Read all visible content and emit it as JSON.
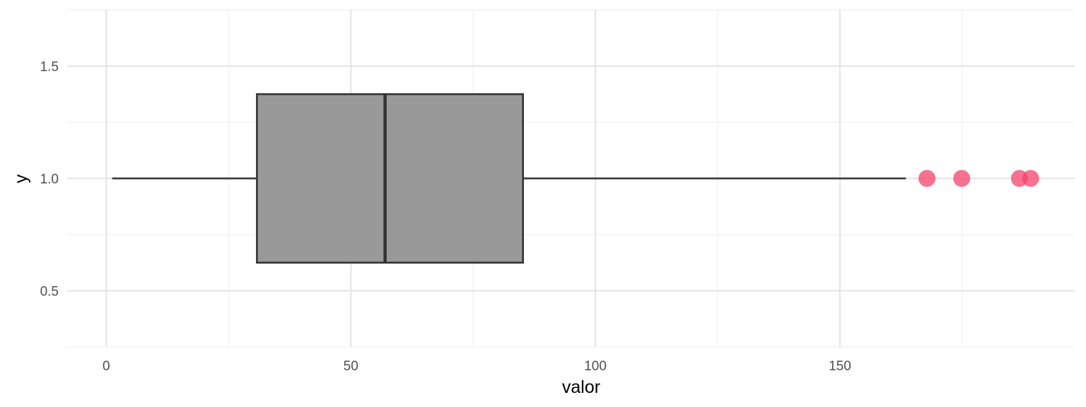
{
  "chart_data": {
    "type": "boxplot",
    "title": "",
    "xlabel": "valor",
    "ylabel": "y",
    "xlim": [
      -8,
      198
    ],
    "ylim": [
      0.25,
      1.75
    ],
    "x_ticks": [
      0,
      50,
      100,
      150
    ],
    "x_tick_labels": [
      "0",
      "50",
      "100",
      "150"
    ],
    "y_ticks": [
      0.5,
      1.0,
      1.5
    ],
    "y_tick_labels": [
      "0.5",
      "1.0",
      "1.5"
    ],
    "x_minor_ticks": [
      25,
      75,
      125,
      175
    ],
    "y_minor_ticks": [
      0.25,
      0.75,
      1.25,
      1.75
    ],
    "grid": true,
    "box": {
      "y": 1.0,
      "half_height": 0.375,
      "whisker_low": 1.2,
      "q1": 30.8,
      "median": 57.0,
      "q3": 85.2,
      "whisker_high": 163.5
    },
    "outliers": [
      {
        "x": 167.8,
        "y": 1.0
      },
      {
        "x": 174.9,
        "y": 1.0
      },
      {
        "x": 186.7,
        "y": 1.0
      },
      {
        "x": 189.0,
        "y": 1.0
      }
    ],
    "colors": {
      "box_fill": "#999999",
      "box_stroke": "#333333",
      "outlier": "#f4436c",
      "grid_major": "#e5e5e5",
      "grid_minor": "#f0f0f0",
      "tick_text": "#4d4d4d",
      "title_text": "#000000"
    }
  }
}
